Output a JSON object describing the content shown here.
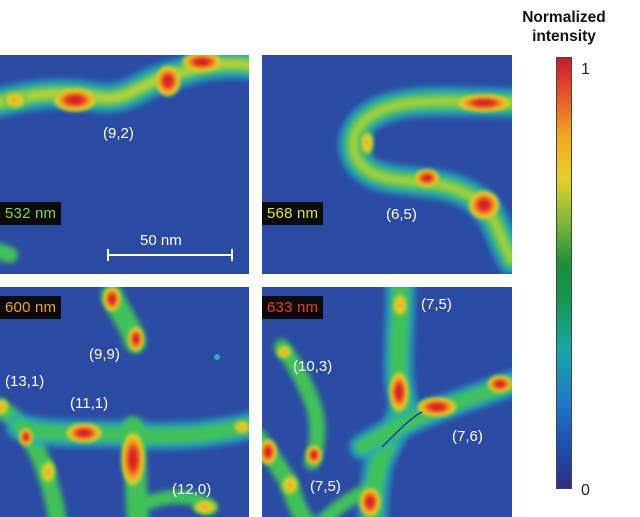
{
  "colorbar": {
    "title": "Normalized\nintensity",
    "max_label": "1",
    "min_label": "0"
  },
  "panels": [
    {
      "wavelength": "532 nm",
      "wavelength_color": "#7fd35a",
      "chirality": [
        "(9,2)"
      ]
    },
    {
      "wavelength": "568 nm",
      "wavelength_color": "#e3e04a",
      "chirality": [
        "(6,5)"
      ]
    },
    {
      "wavelength": "600 nm",
      "wavelength_color": "#f1a528",
      "chirality": [
        "(9,9)",
        "(13,1)",
        "(11,1)",
        "(12,0)"
      ]
    },
    {
      "wavelength": "633 nm",
      "wavelength_color": "#e8412c",
      "chirality": [
        "(7,5)",
        "(10,3)",
        "(7,6)",
        "(7,5)"
      ]
    }
  ],
  "scalebar": {
    "label": "50 nm"
  },
  "colors": {
    "background": "#2b4aa3",
    "hot": "#e0201f",
    "tube": "#2fbf74"
  }
}
